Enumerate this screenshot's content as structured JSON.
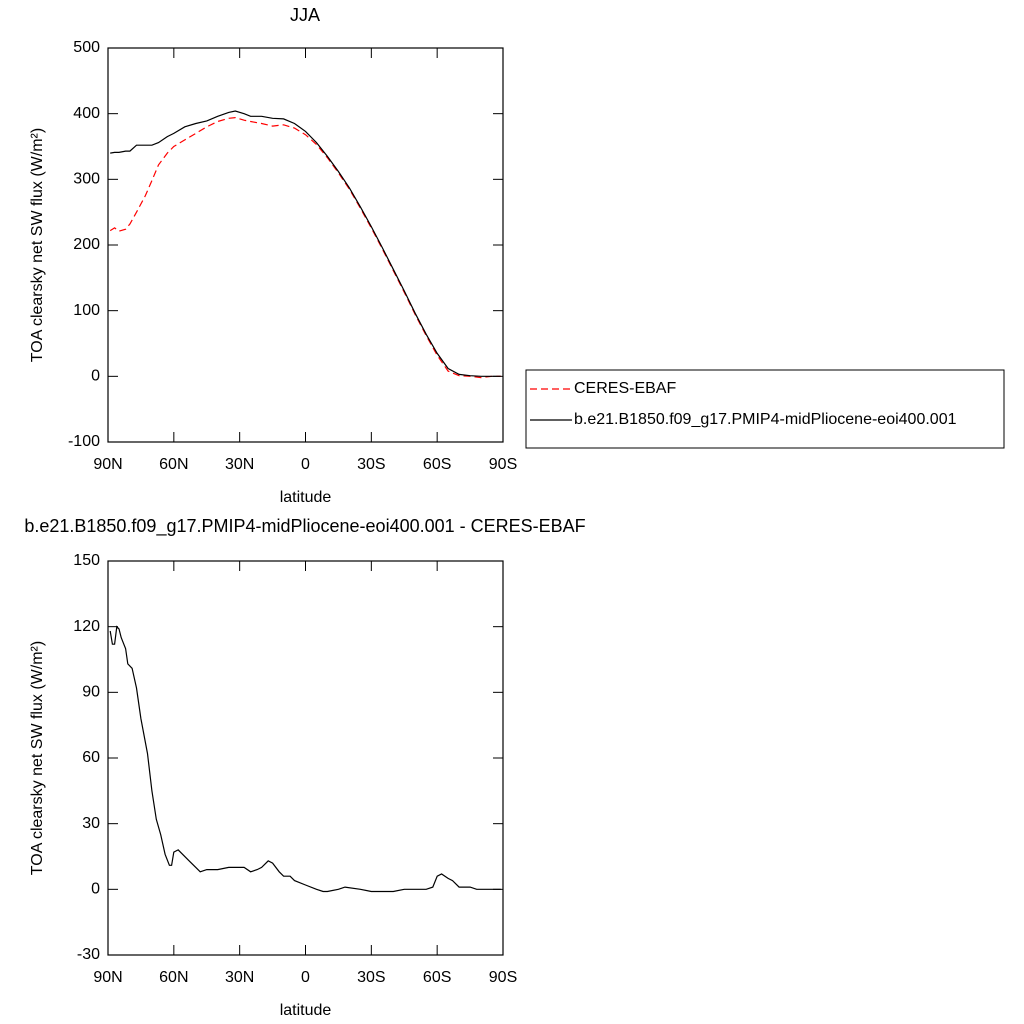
{
  "chart_data": [
    {
      "type": "line",
      "title": "JJA",
      "xlabel": "latitude",
      "ylabel": "TOA clearsky net SW flux (W/m²)",
      "x": [
        89,
        87,
        85,
        82,
        80,
        77,
        73,
        70,
        67,
        63,
        60,
        55,
        50,
        45,
        40,
        35,
        32,
        28,
        25,
        20,
        15,
        10,
        5,
        0,
        -5,
        -10,
        -15,
        -20,
        -25,
        -30,
        -35,
        -40,
        -45,
        -50,
        -55,
        -60,
        -65,
        -70,
        -75,
        -80,
        -85,
        -89
      ],
      "series": [
        {
          "name": "CERES-EBAF",
          "color": "#ff0000",
          "dashed": true,
          "values": [
            222,
            226,
            221,
            224,
            232,
            250,
            275,
            298,
            322,
            340,
            350,
            360,
            370,
            380,
            388,
            393,
            394,
            390,
            388,
            385,
            381,
            383,
            378,
            368,
            353,
            333,
            310,
            285,
            256,
            226,
            194,
            161,
            128,
            94,
            62,
            32,
            8,
            1,
            0,
            -2,
            0,
            0
          ]
        },
        {
          "name": "b.e21.B1850.f09_g17.PMIP4-midPliocene-eoi400.001",
          "color": "#000000",
          "dashed": false,
          "values": [
            340,
            341,
            341,
            343,
            343,
            352,
            352,
            352,
            356,
            365,
            370,
            380,
            385,
            389,
            396,
            402,
            404,
            400,
            396,
            396,
            393,
            392,
            385,
            373,
            356,
            335,
            312,
            287,
            258,
            228,
            196,
            163,
            130,
            96,
            64,
            35,
            12,
            3,
            1,
            0,
            0,
            0
          ]
        }
      ],
      "xlim": [
        90,
        -90
      ],
      "xticks": [
        {
          "value": 90,
          "label": "90N"
        },
        {
          "value": 60,
          "label": "60N"
        },
        {
          "value": 30,
          "label": "30N"
        },
        0,
        {
          "value": -30,
          "label": "30S"
        },
        {
          "value": -60,
          "label": "60S"
        },
        {
          "value": -90,
          "label": "90S"
        }
      ],
      "ylim": [
        -100,
        500
      ],
      "yticks": [
        -100,
        0,
        100,
        200,
        300,
        400,
        500
      ],
      "legend": "right"
    },
    {
      "type": "line",
      "title": "b.e21.B1850.f09_g17.PMIP4-midPliocene-eoi400.001 - CERES-EBAF",
      "xlabel": "latitude",
      "ylabel": "TOA clearsky net SW flux (W/m²)",
      "x": [
        89,
        88,
        87,
        86,
        85,
        84,
        82,
        81,
        79,
        77,
        75,
        72,
        70,
        68,
        66,
        64,
        62,
        61,
        60,
        58,
        56,
        53,
        50,
        48,
        45,
        40,
        35,
        30,
        28,
        25,
        22,
        20,
        17,
        15,
        12,
        10,
        7,
        5,
        0,
        -5,
        -8,
        -10,
        -15,
        -18,
        -25,
        -30,
        -35,
        -40,
        -45,
        -50,
        -55,
        -58,
        -60,
        -62,
        -65,
        -67,
        -70,
        -75,
        -78,
        -80,
        -89
      ],
      "series": [
        {
          "color": "#000000",
          "values": [
            118,
            112,
            112,
            120,
            119,
            115,
            110,
            103,
            101,
            92,
            78,
            62,
            45,
            32,
            25,
            16,
            11,
            11,
            17,
            18,
            16,
            13,
            10,
            8,
            9,
            9,
            10,
            10,
            10,
            8,
            9,
            10,
            13,
            12,
            8,
            6,
            6,
            4,
            2,
            0,
            -1,
            -1,
            0,
            1,
            0,
            -1,
            -1,
            -1,
            0,
            0,
            0,
            1,
            6,
            7,
            5,
            4,
            1,
            1,
            0,
            0,
            0
          ]
        }
      ],
      "xlim": [
        90,
        -90
      ],
      "xticks": [
        {
          "value": 90,
          "label": "90N"
        },
        {
          "value": 60,
          "label": "60N"
        },
        {
          "value": 30,
          "label": "30N"
        },
        0,
        {
          "value": -30,
          "label": "30S"
        },
        {
          "value": -60,
          "label": "60S"
        },
        {
          "value": -90,
          "label": "90S"
        }
      ],
      "ylim": [
        -30,
        150
      ],
      "yticks": [
        -30,
        0,
        30,
        60,
        90,
        120,
        150
      ]
    }
  ]
}
